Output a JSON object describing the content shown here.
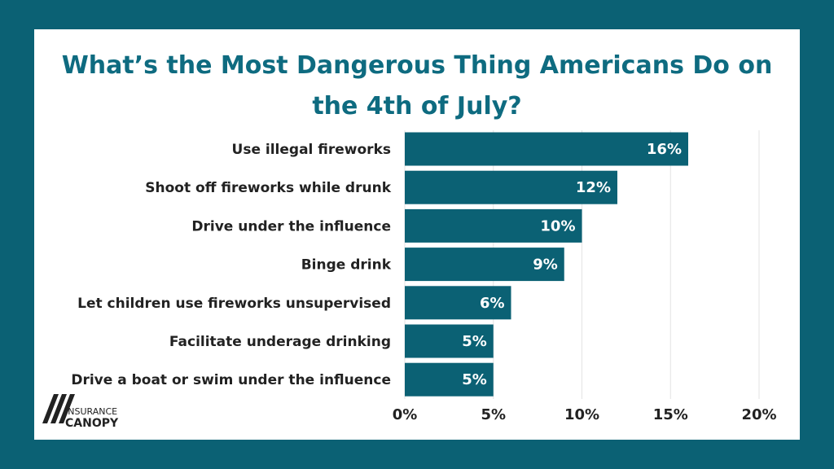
{
  "chart_data": {
    "type": "bar",
    "orientation": "horizontal",
    "title": "What’s the Most Dangerous Thing Americans Do on the 4th of July?",
    "categories": [
      "Use illegal fireworks",
      "Shoot off fireworks while drunk",
      "Drive under the influence",
      "Binge drink",
      "Let children use fireworks unsupervised",
      "Facilitate underage drinking",
      "Drive a boat or swim under the influence"
    ],
    "values": [
      16,
      12,
      10,
      9,
      6,
      5,
      5
    ],
    "value_labels": [
      "16%",
      "12%",
      "10%",
      "9%",
      "6%",
      "5%",
      "5%"
    ],
    "color": "#0b6174",
    "xlim": [
      0,
      20
    ],
    "xticks": [
      {
        "value": 0,
        "label": "0%"
      },
      {
        "value": 5,
        "label": "5%"
      },
      {
        "value": 10,
        "label": "10%"
      },
      {
        "value": 15,
        "label": "15%"
      },
      {
        "value": 20,
        "label": "20%"
      }
    ],
    "grid": true
  },
  "logo": {
    "line1": "INSURANCE",
    "line2": "CANOPY"
  }
}
